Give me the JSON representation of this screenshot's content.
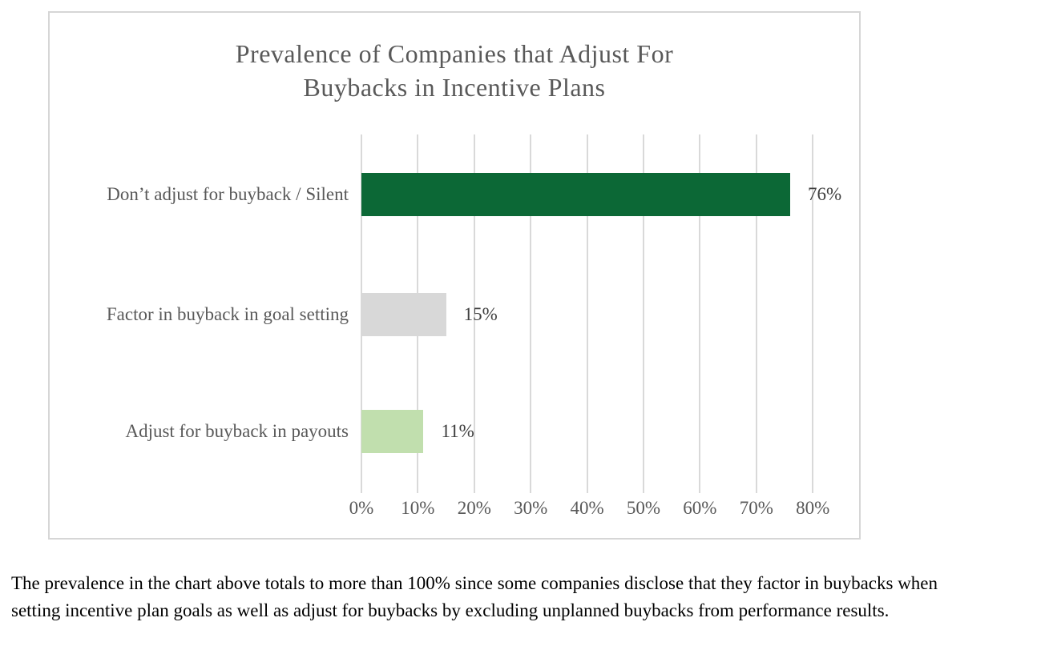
{
  "chart": {
    "title_display": "Prevalence of Companies that Adjust For\nBuybacks in Incentive Plans"
  },
  "chart_data": {
    "type": "bar",
    "orientation": "horizontal",
    "title": "Prevalence of Companies that Adjust For Buybacks in Incentive Plans",
    "categories": [
      "Don’t adjust for buyback / Silent",
      "Factor in buyback in goal setting",
      "Adjust for buyback in payouts"
    ],
    "values": [
      76,
      15,
      11
    ],
    "value_labels": [
      "76%",
      "15%",
      "11%"
    ],
    "bar_colors": [
      "#0c6836",
      "#d8d8d8",
      "#c1dfae"
    ],
    "xlabel": "",
    "ylabel": "",
    "xlim": [
      0,
      80
    ],
    "x_ticks": [
      0,
      10,
      20,
      30,
      40,
      50,
      60,
      70,
      80
    ],
    "x_tick_labels": [
      "0%",
      "10%",
      "20%",
      "30%",
      "40%",
      "50%",
      "60%",
      "70%",
      "80%"
    ],
    "grid": true,
    "legend": false
  },
  "footnote": "The prevalence in the chart above totals to more than 100% since some companies disclose that they factor in buybacks when\nsetting incentive plan goals as well as adjust for buybacks by excluding unplanned buybacks from performance results.",
  "colors": {
    "title_text": "#595959",
    "category_text": "#595959",
    "tick_text": "#595959",
    "value_text": "#3f3f3f",
    "gridline": "#d9d9d9",
    "chart_border": "#d6d6d6",
    "background": "#ffffff"
  }
}
